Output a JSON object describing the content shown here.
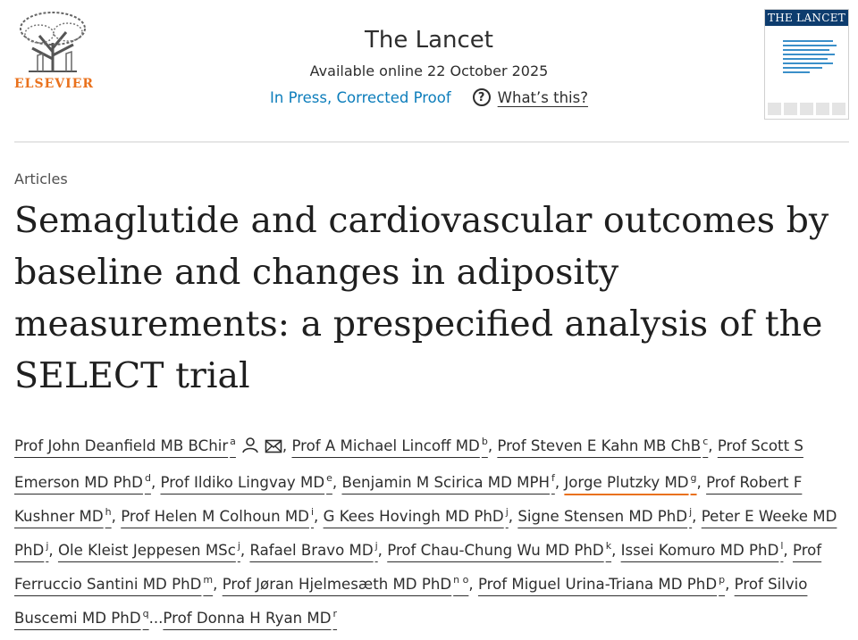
{
  "publisher": {
    "name": "ELSEVIER",
    "brand_color": "#e9711c",
    "logo_icon": "elsevier-tree-logo"
  },
  "journal": {
    "title": "The Lancet",
    "available": "Available online 22 October 2025",
    "status": "In Press, Corrected Proof",
    "help_label": "What’s this?",
    "help_icon": "question-circle-icon",
    "cover_title": "THE LANCET"
  },
  "article": {
    "category": "Articles",
    "title": "Semaglutide and cardiovascular outcomes by baseline and changes in adiposity measurements: a prespecified analysis of the SELECT trial"
  },
  "authors": [
    {
      "name": "Prof John Deanfield MB BChir",
      "sup": "a",
      "icons": [
        "person-icon",
        "mail-icon"
      ]
    },
    {
      "name": "Prof A Michael Lincoff MD",
      "sup": "b"
    },
    {
      "name": "Prof Steven E Kahn MB ChB",
      "sup": "c"
    },
    {
      "name": "Prof Scott S Emerson MD PhD",
      "sup": "d"
    },
    {
      "name": "Prof Ildiko Lingvay MD",
      "sup": "e"
    },
    {
      "name": "Benjamin M Scirica MD MPH",
      "sup": "f"
    },
    {
      "name": "Jorge Plutzky MD",
      "sup": "g",
      "active": true
    },
    {
      "name": "Prof Robert F Kushner MD",
      "sup": "h"
    },
    {
      "name": "Prof Helen M Colhoun MD",
      "sup": "i"
    },
    {
      "name": "G Kees Hovingh MD PhD",
      "sup": "j"
    },
    {
      "name": "Signe Stensen MD PhD",
      "sup": "j"
    },
    {
      "name": "Peter E Weeke MD PhD",
      "sup": "j"
    },
    {
      "name": "Ole Kleist Jeppesen MSc",
      "sup": "j"
    },
    {
      "name": "Rafael Bravo MD",
      "sup": "j"
    },
    {
      "name": "Prof Chau-Chung Wu MD PhD",
      "sup": "k"
    },
    {
      "name": "Issei Komuro MD PhD",
      "sup": "l"
    },
    {
      "name": "Prof Ferruccio Santini MD PhD",
      "sup": "m"
    },
    {
      "name": "Prof Jøran Hjelmesæth MD PhD",
      "sup": "n o"
    },
    {
      "name": "Prof Miguel Urina-Triana MD PhD",
      "sup": "p"
    },
    {
      "name": "Prof Silvio Buscemi MD PhD",
      "sup": "q"
    },
    {
      "name": "Prof Donna H Ryan MD",
      "sup": "r"
    }
  ],
  "authors_separator": ", ",
  "authors_ellipsis": "..."
}
